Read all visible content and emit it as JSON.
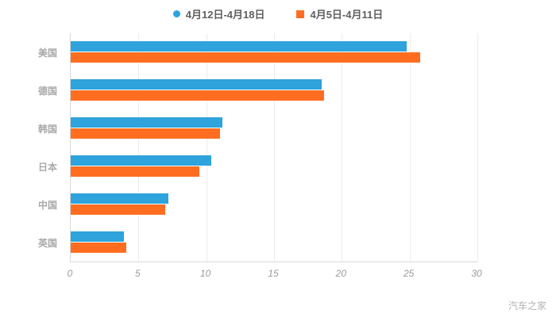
{
  "legend": {
    "items": [
      {
        "label": "4月12日-4月18日",
        "marker": "circle-icon"
      },
      {
        "label": "4月5日-4月11日",
        "marker": "square-icon"
      }
    ]
  },
  "watermark": "汽车之家",
  "chart_data": {
    "type": "bar",
    "orientation": "horizontal",
    "title": "",
    "xlabel": "",
    "ylabel": "",
    "categories": [
      "美国",
      "德国",
      "韩国",
      "日本",
      "中国",
      "英国"
    ],
    "series": [
      {
        "name": "4月12日-4月18日",
        "color": "#2ea3dc",
        "values": [
          24.8,
          18.5,
          11.2,
          10.4,
          7.2,
          3.9
        ]
      },
      {
        "name": "4月5日-4月11日",
        "color": "#ff6e20",
        "values": [
          25.8,
          18.7,
          11.0,
          9.5,
          7.0,
          4.1
        ]
      }
    ],
    "xlim": [
      0,
      30
    ],
    "xticks": [
      0,
      5,
      10,
      15,
      20,
      25,
      30
    ],
    "grid": true,
    "legend_position": "top"
  }
}
